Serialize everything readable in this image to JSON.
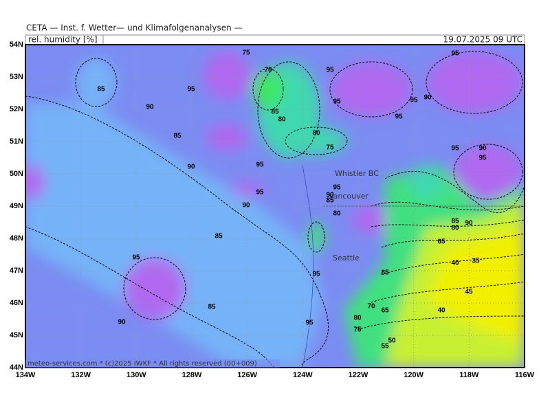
{
  "header": {
    "title": "CETA — Inst. f. Wetter— und Klimafolgenanalysen —",
    "variable": "rel. humidity [%]",
    "valid": "19.07.2025 09 UTC"
  },
  "map": {
    "lat_labels": [
      "54N",
      "53N",
      "52N",
      "51N",
      "50N",
      "49N",
      "48N",
      "47N",
      "46N",
      "45N",
      "44N"
    ],
    "lon_labels": [
      "134W",
      "132W",
      "130W",
      "128W",
      "126W",
      "124W",
      "122W",
      "120W",
      "118W",
      "116W"
    ],
    "places": [
      "Whistler BC",
      "Vancouver",
      "Seattle"
    ],
    "contour_labels": [
      75,
      70,
      95,
      95,
      85,
      95,
      90,
      95,
      95,
      90,
      85,
      80,
      95,
      85,
      80,
      75,
      95,
      90,
      95,
      90,
      95,
      95,
      95,
      90,
      90,
      85,
      80,
      85,
      85,
      80,
      90,
      65,
      95,
      95,
      85,
      35,
      40,
      45,
      85,
      70,
      65,
      40,
      90,
      95,
      80,
      75,
      50,
      55
    ]
  },
  "footer": "meteo-services.com * (c)2025 IWKF * All rights reserved (00+009)"
}
